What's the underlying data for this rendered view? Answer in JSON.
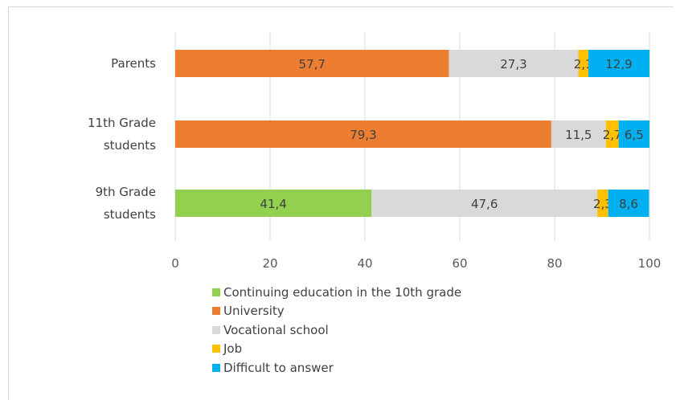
{
  "chart_data": {
    "type": "bar",
    "orientation": "horizontal",
    "stacked": true,
    "categories": [
      {
        "lines": [
          "Parents"
        ]
      },
      {
        "lines": [
          "11th Grade",
          "students"
        ]
      },
      {
        "lines": [
          "9th Grade",
          "students"
        ]
      }
    ],
    "series": [
      {
        "name": "Continuing education in the 10th grade",
        "color": "#92d050",
        "values": [
          0,
          0,
          41.4
        ],
        "labels": [
          "",
          "",
          "41,4"
        ]
      },
      {
        "name": "University",
        "color": "#ed7d31",
        "values": [
          57.7,
          79.3,
          0
        ],
        "labels": [
          "57,7",
          "79,3",
          ""
        ]
      },
      {
        "name": "Vocational school",
        "color": "#d9d9d9",
        "values": [
          27.3,
          11.5,
          47.6
        ],
        "labels": [
          "27,3",
          "11,5",
          "47,6"
        ]
      },
      {
        "name": "Job",
        "color": "#ffc000",
        "values": [
          2.1,
          2.7,
          2.3
        ],
        "labels": [
          "2,1",
          "2,7",
          "2,3"
        ]
      },
      {
        "name": "Difficult to answer",
        "color": "#00b0f0",
        "values": [
          12.9,
          6.5,
          8.6
        ],
        "labels": [
          "12,9",
          "6,5",
          "8,6"
        ]
      }
    ],
    "xlim": [
      0,
      100
    ],
    "xticks": [
      "0",
      "20",
      "40",
      "60",
      "80",
      "100"
    ],
    "grid": true,
    "legend_position": "bottom",
    "title": "",
    "xlabel": "",
    "ylabel": ""
  }
}
